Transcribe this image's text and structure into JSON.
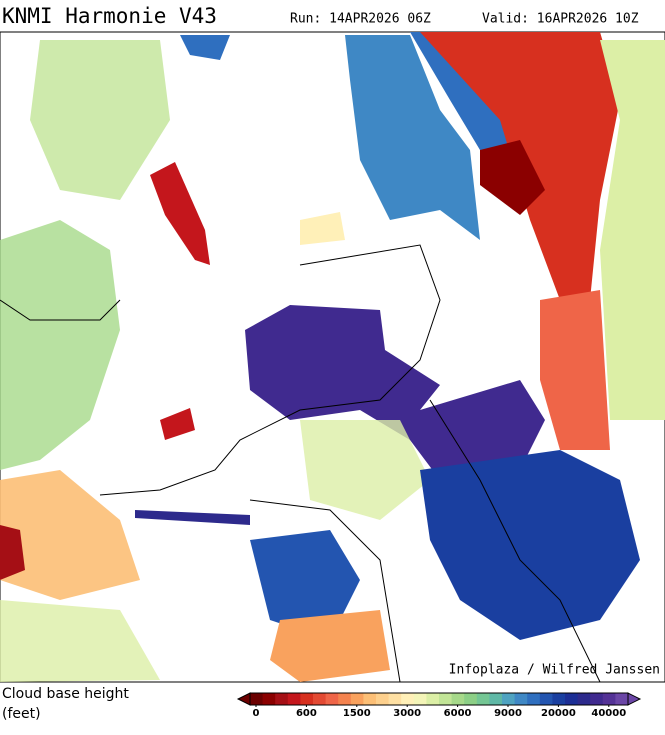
{
  "header": {
    "title": "KNMI Harmonie V43",
    "run": "Run: 14APR2026 06Z",
    "valid": "Valid: 16APR2026 10Z"
  },
  "map": {
    "credit": "Infoplaza / Wilfred Janssen"
  },
  "legend": {
    "title": "Cloud base height",
    "unit": "(feet)",
    "colors": [
      "#6b0000",
      "#8b0000",
      "#a50f15",
      "#c4161c",
      "#d7301f",
      "#e34a33",
      "#ef6548",
      "#f4834f",
      "#f9a25e",
      "#fcbf76",
      "#fdd08d",
      "#fee0a3",
      "#fff0b8",
      "#f4f5b8",
      "#dcefa6",
      "#c2e597",
      "#a6d98a",
      "#8ccf86",
      "#74c694",
      "#5fb8a6",
      "#4fa3c1",
      "#3f88c5",
      "#2f6fbf",
      "#2355b0",
      "#1a3fa0",
      "#1c2e95",
      "#2d2a8c",
      "#402a8f",
      "#543296",
      "#6b46a6"
    ],
    "ticks": [
      0,
      600,
      1500,
      3000,
      6000,
      9000,
      20000,
      40000
    ]
  }
}
